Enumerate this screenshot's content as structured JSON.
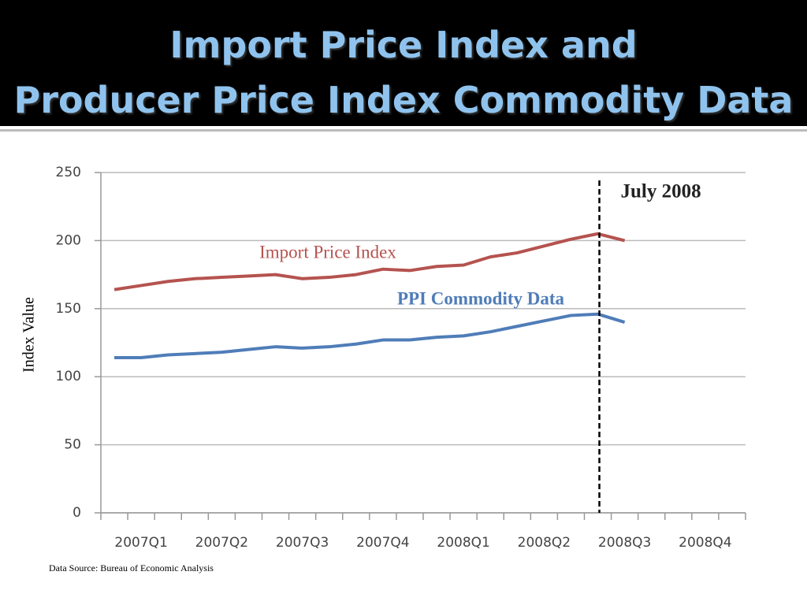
{
  "chart_data": {
    "type": "line",
    "title": [
      "Import Price Index and",
      "Producer Price Index Commodity Data"
    ],
    "y_label": "Index Value",
    "source": "Data Source: Bureau of Economic Analysis",
    "categories": [
      null,
      "2007Q1",
      null,
      null,
      "2007Q2",
      null,
      null,
      "2007Q3",
      null,
      null,
      "2007Q4",
      null,
      null,
      "2008Q1",
      null,
      null,
      "2008Q2",
      null,
      null,
      "2008Q3",
      null,
      null,
      "2008Q4",
      null
    ],
    "series": [
      {
        "name": "Import Price Index",
        "color": "#b5534f",
        "values": [
          164,
          167,
          170,
          172,
          173,
          174,
          175,
          172,
          173,
          175,
          179,
          178,
          181,
          182,
          188,
          191,
          196,
          201,
          205,
          200,
          null,
          null,
          null,
          null
        ]
      },
      {
        "name": "PPI Commodity Data",
        "color": "#4f7db8",
        "values": [
          114,
          114,
          116,
          117,
          118,
          120,
          122,
          121,
          122,
          124,
          127,
          127,
          129,
          130,
          133,
          137,
          141,
          145,
          146,
          140,
          null,
          null,
          null,
          null
        ]
      }
    ],
    "annotations": [
      {
        "text": "July 2008",
        "at": 18
      }
    ],
    "ylim": [
      0,
      250
    ],
    "yticks": [
      0,
      50,
      100,
      150,
      200,
      250
    ],
    "grid": true
  }
}
